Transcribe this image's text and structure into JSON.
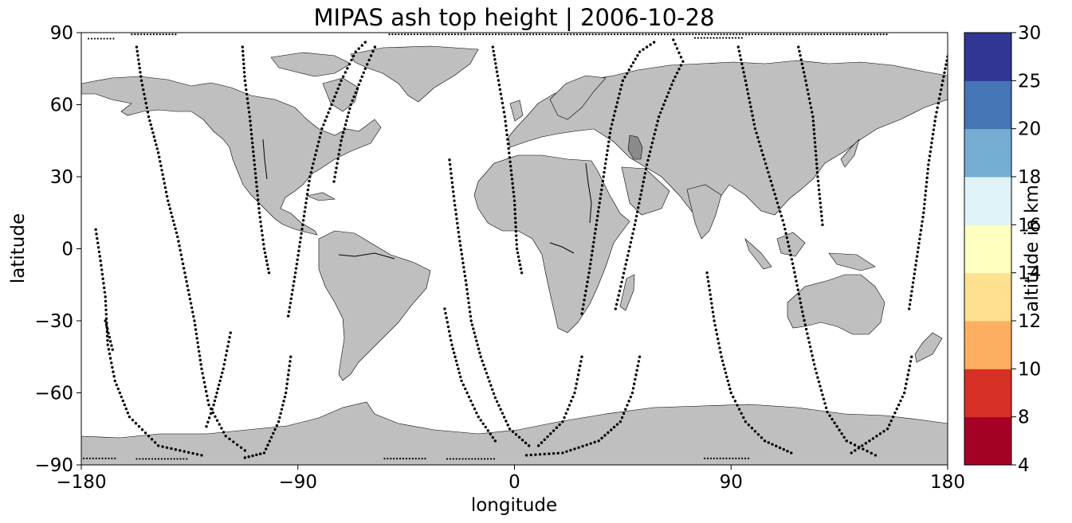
{
  "title": "MIPAS ash top height | 2006-10-28",
  "map": {
    "projection": "plate carree",
    "lon_range": [
      -180,
      180
    ],
    "lat_range": [
      -90,
      90
    ],
    "xlabel": "longitude",
    "ylabel": "latitude",
    "x_ticks": [
      {
        "value": -180,
        "label": "−180"
      },
      {
        "value": -90,
        "label": "−90"
      },
      {
        "value": 0,
        "label": "0"
      },
      {
        "value": 90,
        "label": "90"
      },
      {
        "value": 180,
        "label": "180"
      }
    ],
    "y_ticks": [
      {
        "value": 90,
        "label": "90"
      },
      {
        "value": 60,
        "label": "60"
      },
      {
        "value": 30,
        "label": "30"
      },
      {
        "value": 0,
        "label": "0"
      },
      {
        "value": -30,
        "label": "−30"
      },
      {
        "value": -60,
        "label": "−60"
      },
      {
        "value": -90,
        "label": "−90"
      }
    ],
    "land_color": "#bfbfbf",
    "lake_color": "#8a8a8a",
    "track_color": "#000000"
  },
  "colorbar": {
    "label": "altitude in km",
    "boundaries": [
      4,
      8,
      10,
      12,
      14,
      16,
      18,
      20,
      25,
      30
    ],
    "boundary_labels": [
      "4",
      "8",
      "10",
      "12",
      "14",
      "16",
      "18",
      "20",
      "25",
      "30"
    ],
    "colors": [
      "#a50026",
      "#d73027",
      "#f46d43",
      "#fdae61",
      "#fee090",
      "#ffffbf",
      "#e0f3f8",
      "#abd9e9",
      "#74add1",
      "#4575b4",
      "#313695"
    ]
  },
  "tracks": [
    [
      [
        -174,
        8
      ],
      [
        -172,
        -5
      ],
      [
        -170,
        -20
      ],
      [
        -169,
        -40
      ],
      [
        -166,
        -55
      ],
      [
        -160,
        -70
      ],
      [
        -148,
        -82
      ],
      [
        -130,
        -86
      ]
    ],
    [
      [
        -157,
        84
      ],
      [
        -155,
        70
      ],
      [
        -152,
        55
      ],
      [
        -148,
        40
      ],
      [
        -144,
        20
      ],
      [
        -140,
        5
      ],
      [
        -137,
        -10
      ],
      [
        -133,
        -30
      ],
      [
        -130,
        -50
      ],
      [
        -127,
        -65
      ],
      [
        -120,
        -78
      ],
      [
        -112,
        -84
      ]
    ],
    [
      [
        -113,
        84
      ],
      [
        -112,
        70
      ],
      [
        -110,
        55
      ],
      [
        -108,
        35
      ],
      [
        -106,
        15
      ],
      [
        -104,
        0
      ],
      [
        -102,
        -10
      ]
    ],
    [
      [
        -93,
        -45
      ],
      [
        -95,
        -60
      ],
      [
        -98,
        -72
      ],
      [
        -104,
        -85
      ],
      [
        -112,
        -87
      ]
    ],
    [
      [
        -94,
        -28
      ],
      [
        -91,
        -10
      ],
      [
        -88,
        10
      ],
      [
        -85,
        30
      ],
      [
        -80,
        50
      ],
      [
        -72,
        70
      ],
      [
        -66,
        82
      ],
      [
        -62,
        86
      ]
    ],
    [
      [
        -170,
        -30
      ],
      [
        -167,
        -42
      ]
    ],
    [
      [
        -128,
        -74
      ],
      [
        -125,
        -65
      ],
      [
        -121,
        -50
      ],
      [
        -118,
        -35
      ]
    ],
    [
      [
        -75,
        28
      ],
      [
        -72,
        45
      ],
      [
        -68,
        60
      ],
      [
        -62,
        75
      ],
      [
        -58,
        84
      ]
    ],
    [
      [
        -27,
        37
      ],
      [
        -25,
        20
      ],
      [
        -23,
        5
      ],
      [
        -20,
        -15
      ],
      [
        -18,
        -30
      ],
      [
        -14,
        -45
      ],
      [
        -8,
        -62
      ],
      [
        -2,
        -75
      ],
      [
        6,
        -82
      ]
    ],
    [
      [
        -29,
        -25
      ],
      [
        -26,
        -40
      ],
      [
        -22,
        -55
      ],
      [
        -15,
        -70
      ],
      [
        -8,
        -80
      ]
    ],
    [
      [
        -9,
        84
      ],
      [
        -7,
        72
      ],
      [
        -4,
        55
      ],
      [
        -2,
        38
      ],
      [
        0,
        20
      ],
      [
        1,
        0
      ],
      [
        3,
        -10
      ]
    ],
    [
      [
        28,
        -27
      ],
      [
        31,
        -10
      ],
      [
        34,
        10
      ],
      [
        37,
        30
      ],
      [
        40,
        50
      ],
      [
        45,
        70
      ],
      [
        52,
        82
      ],
      [
        58,
        86
      ]
    ],
    [
      [
        28,
        -45
      ],
      [
        25,
        -60
      ],
      [
        20,
        -72
      ],
      [
        10,
        -82
      ]
    ],
    [
      [
        66,
        87
      ],
      [
        70,
        78
      ],
      [
        66,
        70
      ],
      [
        60,
        55
      ],
      [
        55,
        35
      ],
      [
        50,
        10
      ],
      [
        45,
        -12
      ],
      [
        42,
        -25
      ]
    ],
    [
      [
        52,
        -45
      ],
      [
        49,
        -60
      ],
      [
        44,
        -72
      ],
      [
        35,
        -80
      ],
      [
        20,
        -85
      ],
      [
        5,
        -86
      ]
    ],
    [
      [
        80,
        -10
      ],
      [
        83,
        -30
      ],
      [
        86,
        -45
      ],
      [
        90,
        -60
      ],
      [
        96,
        -72
      ],
      [
        104,
        -80
      ],
      [
        115,
        -85
      ]
    ],
    [
      [
        93,
        84
      ],
      [
        96,
        70
      ],
      [
        100,
        50
      ],
      [
        106,
        30
      ],
      [
        112,
        10
      ],
      [
        116,
        -8
      ],
      [
        120,
        -28
      ],
      [
        125,
        -50
      ],
      [
        130,
        -68
      ],
      [
        138,
        -80
      ],
      [
        150,
        -86
      ]
    ],
    [
      [
        118,
        84
      ],
      [
        121,
        70
      ],
      [
        124,
        55
      ],
      [
        126,
        30
      ],
      [
        128,
        10
      ]
    ],
    [
      [
        165,
        -45
      ],
      [
        162,
        -60
      ],
      [
        155,
        -75
      ],
      [
        140,
        -85
      ]
    ],
    [
      [
        164,
        -25
      ],
      [
        167,
        -5
      ],
      [
        170,
        15
      ],
      [
        172,
        35
      ],
      [
        175,
        55
      ],
      [
        178,
        70
      ],
      [
        180,
        80
      ]
    ]
  ],
  "polar_rows": [
    {
      "lat": 87.5,
      "lon_from": -177,
      "lon_to": -166
    },
    {
      "lat": 89.3,
      "lon_from": -159,
      "lon_to": -140
    },
    {
      "lat": 89.3,
      "lon_from": -52,
      "lon_to": 155
    },
    {
      "lat": 87.8,
      "lon_from": 75,
      "lon_to": 95
    },
    {
      "lat": -87.3,
      "lon_from": -179,
      "lon_to": -165
    },
    {
      "lat": -87.5,
      "lon_from": -157,
      "lon_to": -136
    },
    {
      "lat": -87.4,
      "lon_from": -54,
      "lon_to": -36
    },
    {
      "lat": -87.5,
      "lon_from": -28,
      "lon_to": -8
    },
    {
      "lat": -87.3,
      "lon_from": 79,
      "lon_to": 98
    }
  ]
}
